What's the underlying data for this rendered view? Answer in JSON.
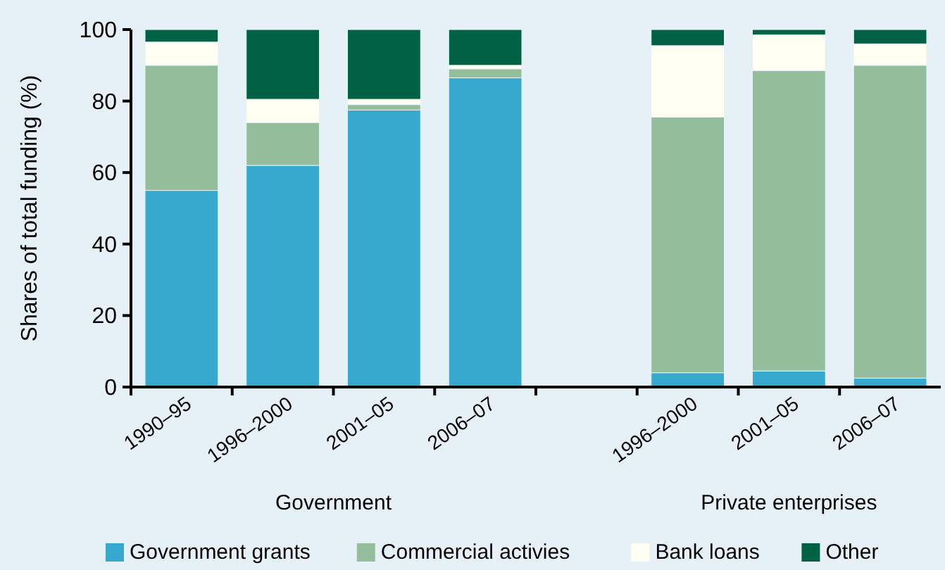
{
  "chart_data": {
    "type": "bar",
    "stacked": true,
    "ylabel": "Shares of total funding (%)",
    "categories": [
      "1990–95",
      "1996–2000",
      "2001–05",
      "2006–07",
      null,
      "1996–2000",
      "2001–05",
      "2006–07"
    ],
    "series": [
      {
        "name": "Government grants",
        "color": "#37a8ce",
        "values": [
          55,
          62,
          77.5,
          86.5,
          null,
          4,
          4.5,
          2.5
        ]
      },
      {
        "name": "Commercial activies",
        "color": "#94bd9c",
        "values": [
          35,
          12,
          1.5,
          2.5,
          null,
          71.5,
          84,
          87.5
        ]
      },
      {
        "name": "Bank loans",
        "color": "#fffff2",
        "values": [
          6.5,
          6.5,
          1.5,
          1,
          null,
          20,
          10,
          6
        ]
      },
      {
        "name": "Other",
        "color": "#006242",
        "values": [
          3.5,
          19.5,
          19.5,
          10,
          null,
          4.5,
          1.5,
          4
        ]
      }
    ],
    "ylim": [
      0,
      100
    ],
    "yticks": [
      0,
      20,
      40,
      60,
      80,
      100
    ],
    "grid": false,
    "legend": "bottom",
    "annotations": [
      "Government",
      "Private enterprises"
    ]
  }
}
